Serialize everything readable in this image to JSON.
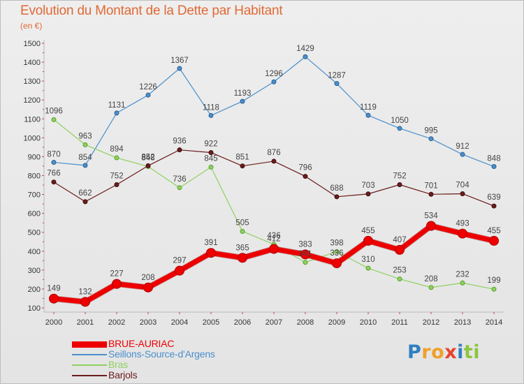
{
  "title": "Evolution du Montant de la Dette par Habitant",
  "unit_label": "(en €)",
  "brand": {
    "letters": [
      "P",
      "r",
      "o",
      "x",
      "i",
      "t",
      "i"
    ],
    "colors": [
      "#2f7fc1",
      "#f0a02a",
      "#f0a02a",
      "#e8432f",
      "#2f7fc1",
      "#8cc63f",
      "#8cc63f"
    ]
  },
  "chart_data": {
    "type": "line",
    "x": [
      2000,
      2001,
      2002,
      2003,
      2004,
      2005,
      2006,
      2007,
      2008,
      2009,
      2010,
      2011,
      2012,
      2013,
      2014
    ],
    "ylim": [
      100,
      1500
    ],
    "yticks": [
      100,
      200,
      300,
      400,
      500,
      600,
      700,
      800,
      900,
      1000,
      1100,
      1200,
      1300,
      1400,
      1500
    ],
    "grid": false,
    "legend_position": "bottom-left",
    "series": [
      {
        "name": "Seillons-Source-d'Argens",
        "color": "#4a8fcc",
        "values": [
          870,
          854,
          1131,
          1226,
          1367,
          1118,
          1193,
          1296,
          1429,
          1287,
          1119,
          1050,
          995,
          912,
          848
        ]
      },
      {
        "name": "Bras",
        "color": "#8fd15f",
        "values": [
          1096,
          963,
          894,
          848,
          736,
          845,
          505,
          436,
          341,
          398,
          310,
          253,
          208,
          232,
          199
        ]
      },
      {
        "name": "Barjols",
        "color": "#6b1c1c",
        "values": [
          766,
          662,
          752,
          852,
          936,
          922,
          851,
          876,
          796,
          688,
          703,
          752,
          701,
          704,
          639
        ]
      },
      {
        "name": "BRUE-AURIAC",
        "color": "#ee0000",
        "values": [
          149,
          132,
          227,
          208,
          297,
          391,
          365,
          412,
          383,
          336,
          455,
          407,
          534,
          493,
          455
        ]
      }
    ],
    "legend_order": [
      "BRUE-AURIAC",
      "Seillons-Source-d'Argens",
      "Bras",
      "Barjols"
    ]
  }
}
